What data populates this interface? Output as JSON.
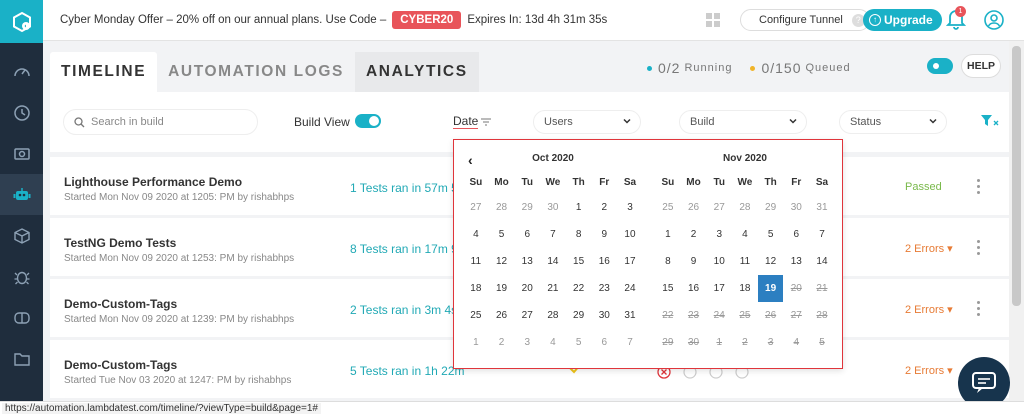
{
  "topbar": {
    "offer_text": "Cyber Monday Offer – 20% off on our annual plans. Use Code –",
    "coupon_code": "CYBER20",
    "expires": "Expires In: 13d 4h 31m 35s",
    "configure_tunnel": "Configure Tunnel",
    "upgrade": "Upgrade",
    "notification_count": "1"
  },
  "tabs": [
    {
      "label": "TIMELINE"
    },
    {
      "label": "AUTOMATION LOGS"
    },
    {
      "label": "ANALYTICS"
    }
  ],
  "counts": {
    "running": "0/2",
    "running_label": "Running",
    "queued": "0/150",
    "queued_label": "Queued",
    "running_color": "#1ab1c7",
    "queued_color": "#f0b429"
  },
  "help": "HELP",
  "filters": {
    "search_placeholder": "Search in build",
    "build_view": "Build View",
    "date": "Date",
    "users": "Users",
    "build": "Build",
    "status": "Status"
  },
  "builds": [
    {
      "title": "Lighthouse Performance Demo",
      "sub": "Started Mon Nov 09 2020 at 1205: PM by rishabhps",
      "tests": "1 Tests ran in 57m 5",
      "status": "Passed"
    },
    {
      "title": "TestNG Demo Tests",
      "sub": "Started Mon Nov 09 2020 at 1253: PM by rishabhps",
      "tests": "8 Tests ran in 17m 9",
      "status": "2 Errors"
    },
    {
      "title": "Demo-Custom-Tags",
      "sub": "Started Mon Nov 09 2020 at 1239: PM by rishabhps",
      "tests": "2 Tests ran in 3m 4s",
      "status": "2 Errors"
    },
    {
      "title": "Demo-Custom-Tags",
      "sub": "Started Tue Nov 03 2020 at 1247: PM by rishabhps",
      "tests": "5 Tests ran in 1h 22m",
      "status": "2 Errors"
    }
  ],
  "calendar": {
    "weekdays": [
      "Su",
      "Mo",
      "Tu",
      "We",
      "Th",
      "Fr",
      "Sa"
    ],
    "months": [
      {
        "title": "Oct 2020",
        "days": [
          [
            "27",
            "m"
          ],
          [
            "28",
            "m"
          ],
          [
            "29",
            "m"
          ],
          [
            "30",
            "m"
          ],
          [
            "1",
            ""
          ],
          [
            "2",
            ""
          ],
          [
            "3",
            ""
          ],
          [
            "4",
            ""
          ],
          [
            "5",
            ""
          ],
          [
            "6",
            ""
          ],
          [
            "7",
            ""
          ],
          [
            "8",
            ""
          ],
          [
            "9",
            ""
          ],
          [
            "10",
            ""
          ],
          [
            "11",
            ""
          ],
          [
            "12",
            ""
          ],
          [
            "13",
            ""
          ],
          [
            "14",
            ""
          ],
          [
            "15",
            ""
          ],
          [
            "16",
            ""
          ],
          [
            "17",
            ""
          ],
          [
            "18",
            ""
          ],
          [
            "19",
            ""
          ],
          [
            "20",
            ""
          ],
          [
            "21",
            ""
          ],
          [
            "22",
            ""
          ],
          [
            "23",
            ""
          ],
          [
            "24",
            ""
          ],
          [
            "25",
            ""
          ],
          [
            "26",
            ""
          ],
          [
            "27",
            ""
          ],
          [
            "28",
            ""
          ],
          [
            "29",
            ""
          ],
          [
            "30",
            ""
          ],
          [
            "31",
            ""
          ],
          [
            "1",
            "m"
          ],
          [
            "2",
            "m"
          ],
          [
            "3",
            "m"
          ],
          [
            "4",
            "m"
          ],
          [
            "5",
            "m"
          ],
          [
            "6",
            "m"
          ],
          [
            "7",
            "m"
          ]
        ]
      },
      {
        "title": "Nov 2020",
        "days": [
          [
            "25",
            "m"
          ],
          [
            "26",
            "m"
          ],
          [
            "27",
            "m"
          ],
          [
            "28",
            "m"
          ],
          [
            "29",
            "m"
          ],
          [
            "30",
            "m"
          ],
          [
            "31",
            "m"
          ],
          [
            "1",
            ""
          ],
          [
            "2",
            ""
          ],
          [
            "3",
            ""
          ],
          [
            "4",
            ""
          ],
          [
            "5",
            ""
          ],
          [
            "6",
            ""
          ],
          [
            "7",
            ""
          ],
          [
            "8",
            ""
          ],
          [
            "9",
            ""
          ],
          [
            "10",
            ""
          ],
          [
            "11",
            ""
          ],
          [
            "12",
            ""
          ],
          [
            "13",
            ""
          ],
          [
            "14",
            ""
          ],
          [
            "15",
            ""
          ],
          [
            "16",
            ""
          ],
          [
            "17",
            ""
          ],
          [
            "18",
            ""
          ],
          [
            "19",
            "sel"
          ],
          [
            "20",
            "s"
          ],
          [
            "21",
            "s"
          ],
          [
            "22",
            "s"
          ],
          [
            "23",
            "s"
          ],
          [
            "24",
            "s"
          ],
          [
            "25",
            "s"
          ],
          [
            "26",
            "s"
          ],
          [
            "27",
            "s"
          ],
          [
            "28",
            "s"
          ],
          [
            "29",
            "s"
          ],
          [
            "30",
            "s"
          ],
          [
            "1",
            "s"
          ],
          [
            "2",
            "s"
          ],
          [
            "3",
            "s"
          ],
          [
            "4",
            "s"
          ],
          [
            "5",
            "s"
          ]
        ]
      }
    ]
  },
  "status_url": "https://automation.lambdatest.com/timeline/?viewType=build&page=1#"
}
